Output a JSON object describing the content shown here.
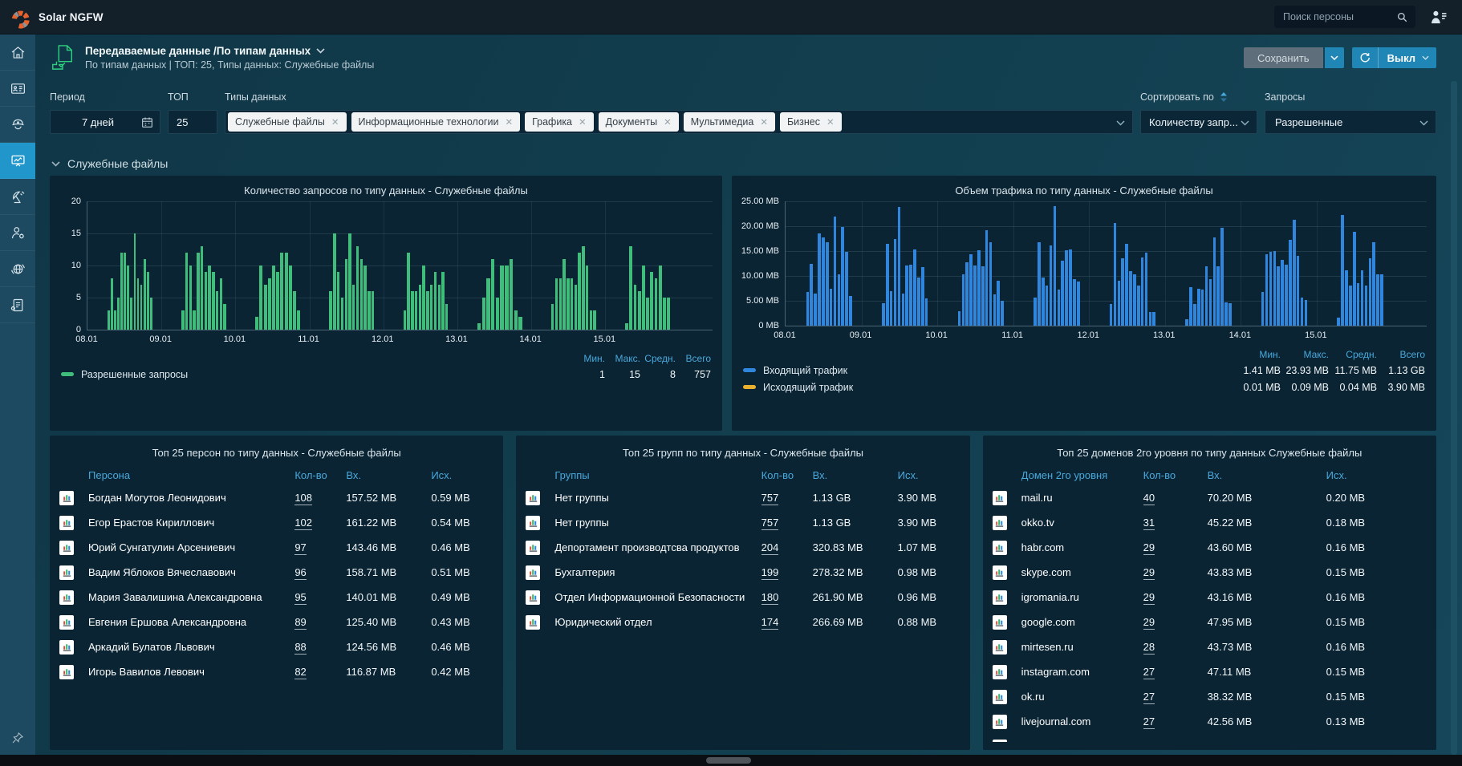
{
  "topbar": {
    "app_title": "Solar NGFW",
    "search_placeholder": "Поиск персоны"
  },
  "header": {
    "title": "Передаваемые данные /По типам данных",
    "subtitle": "По типам данных | ТОП: 25, Типы данных: Служебные файлы",
    "save_label": "Сохранить",
    "power_label": "Выкл"
  },
  "filters": {
    "period_label": "Период",
    "period_value": "7 дней",
    "top_label": "ТОП",
    "top_value": "25",
    "types_label": "Типы данных",
    "type_tags": [
      "Служебные файлы",
      "Информационные технологии",
      "Графика",
      "Документы",
      "Мультимедиа",
      "Бизнес"
    ],
    "sort_label": "Сортировать по",
    "sort_value": "Количеству запр...",
    "requests_label": "Запросы",
    "requests_value": "Разрешенные"
  },
  "section": {
    "title": "Служебные файлы"
  },
  "stats_header": [
    "Мин.",
    "Макс.",
    "Средн.",
    "Всего"
  ],
  "chart_data": [
    {
      "type": "bar",
      "title": "Количество запросов по типу данных - Служебные файлы",
      "xlabel": "",
      "ylabel": "",
      "ylim": [
        0,
        20
      ],
      "grid": true,
      "legend_position": "bottom",
      "x_ticks": [
        "08.01",
        "09.01",
        "10.01",
        "11.01",
        "12.01",
        "13.01",
        "14.01",
        "15.01"
      ],
      "y_ticks": [
        {
          "v": 0,
          "label": "0"
        },
        {
          "v": 5,
          "label": "5"
        },
        {
          "v": 10,
          "label": "10"
        },
        {
          "v": 15,
          "label": "15"
        },
        {
          "v": 20,
          "label": "20"
        }
      ],
      "series": [
        {
          "name": "Разрешенные запросы",
          "color": "#3fbe7b",
          "clusters": [
            [
              3,
              8,
              3,
              5,
              12,
              12,
              10,
              5,
              15,
              8,
              7,
              11,
              9,
              5
            ],
            [
              3,
              12,
              10,
              3,
              12,
              13,
              9,
              10,
              9,
              6,
              8,
              4
            ],
            [
              2,
              10,
              7,
              8,
              10,
              9,
              12,
              12,
              10,
              6,
              3
            ],
            [
              6,
              15,
              9,
              5,
              11,
              15,
              7,
              13,
              11,
              10,
              6,
              6
            ],
            [
              3,
              12,
              6,
              6,
              7,
              10,
              6,
              7,
              9,
              7,
              9,
              4
            ],
            [
              1,
              5,
              8,
              11,
              5,
              10,
              10,
              11,
              3,
              2
            ],
            [
              4,
              8,
              8,
              11,
              8,
              8,
              7,
              12,
              13,
              10,
              3,
              3
            ],
            [
              1,
              13,
              7,
              6,
              10,
              5,
              9,
              8,
              10,
              5,
              5
            ]
          ],
          "stats": {
            "min": "1",
            "max": "15",
            "avg": "8",
            "total": "757"
          }
        }
      ]
    },
    {
      "type": "bar",
      "title": "Объем трафика по типу данных - Служебные файлы",
      "xlabel": "",
      "ylabel": "",
      "ylim": [
        0,
        25
      ],
      "grid": true,
      "legend_position": "bottom",
      "x_ticks": [
        "08.01",
        "09.01",
        "10.01",
        "11.01",
        "12.01",
        "13.01",
        "14.01",
        "15.01"
      ],
      "y_ticks": [
        {
          "v": 0,
          "label": "0 MB"
        },
        {
          "v": 5,
          "label": "5.00 MB"
        },
        {
          "v": 10,
          "label": "10.00 MB"
        },
        {
          "v": 15,
          "label": "15.00 MB"
        },
        {
          "v": 20,
          "label": "20.00 MB"
        },
        {
          "v": 25,
          "label": "25.00 MB"
        }
      ],
      "series": [
        {
          "name": "Входящий трафик",
          "color": "#2f86dc",
          "clusters": [
            [
              6.7,
              12.4,
              6.4,
              18.6,
              17.8,
              16.7,
              7.5,
              21.9,
              10.4,
              19.8,
              14.8,
              5.9
            ],
            [
              4.5,
              16.5,
              7.0,
              17.5,
              23.9,
              6.5,
              12.1,
              12.2,
              15.3,
              9.6,
              11.7,
              5.5
            ],
            [
              2.9,
              10.4,
              12.8,
              14.4,
              12.1,
              15.2,
              12.0,
              19.2,
              16.8,
              6.3,
              9.1,
              5.0
            ],
            [
              5.7,
              16.8,
              9.7,
              8.0,
              16.2,
              24.0,
              7.2,
              13.0,
              15.2,
              15.4,
              9.4,
              8.8
            ],
            [
              4.3,
              20.7,
              9.1,
              13.6,
              16.4,
              10.9,
              10.3,
              8.1,
              13.7,
              14.7,
              2.8,
              2.7
            ],
            [
              1.3,
              7.8,
              4.3,
              7.5,
              7.3,
              11.9,
              9.3,
              17.7,
              12.0,
              19.6,
              4.6,
              4.5
            ],
            [
              6.8,
              14.3,
              14.8,
              15.0,
              11.9,
              13.3,
              12.2,
              17.2,
              21.3,
              14.1,
              5.6,
              5.1
            ],
            [
              1.6,
              22.3,
              11.2,
              8.0,
              18.9,
              8.5,
              11.1,
              8.1,
              13.6,
              16.8,
              10.4,
              10.3
            ]
          ],
          "stats": {
            "min": "1.41 MB",
            "max": "23.93 MB",
            "avg": "11.75 MB",
            "total": "1.13 GB"
          }
        },
        {
          "name": "Исходящий трафик",
          "color": "#e9b02f",
          "clusters": [],
          "stats": {
            "min": "0.01 MB",
            "max": "0.09 MB",
            "avg": "0.04 MB",
            "total": "3.90 MB"
          }
        }
      ]
    }
  ],
  "tables": [
    {
      "title": "Топ 25 персон по типу данных - Служебные файлы",
      "columns": [
        "Персона",
        "Кол-во",
        "Вх.",
        "Исх."
      ],
      "link_name": "person-link",
      "clipped_row": false,
      "rows": [
        [
          "Богдан Могутов Леонидович",
          "108",
          "157.52 MB",
          "0.59 MB"
        ],
        [
          "Егор Ерастов Кириллович",
          "102",
          "161.22 MB",
          "0.54 MB"
        ],
        [
          "Юрий Сунгатулин Арсениевич",
          "97",
          "143.46 MB",
          "0.46 MB"
        ],
        [
          "Вадим Яблоков Вячеславович",
          "96",
          "158.71 MB",
          "0.51 MB"
        ],
        [
          "Мария Завалишина Александровна",
          "95",
          "140.01 MB",
          "0.49 MB"
        ],
        [
          "Евгения Ершова Александровна",
          "89",
          "125.40 MB",
          "0.43 MB"
        ],
        [
          "Аркадий Булатов Львович",
          "88",
          "124.56 MB",
          "0.46 MB"
        ],
        [
          "Игорь Вавилов Левович",
          "82",
          "116.87 MB",
          "0.42 MB"
        ]
      ]
    },
    {
      "title": "Топ 25 групп по типу данных - Служебные файлы",
      "columns": [
        "Группы",
        "Кол-во",
        "Вх.",
        "Исх."
      ],
      "link_name": "group-link",
      "clipped_row": false,
      "rows": [
        [
          "Нет группы",
          "757",
          "1.13 GB",
          "3.90 MB"
        ],
        [
          "Нет группы",
          "757",
          "1.13 GB",
          "3.90 MB"
        ],
        [
          "Депортамент производтсва продуктов",
          "204",
          "320.83 MB",
          "1.07 MB"
        ],
        [
          "Бухгалтерия",
          "199",
          "278.32 MB",
          "0.98 MB"
        ],
        [
          "Отдел Информационной Безопасности",
          "180",
          "261.90 MB",
          "0.96 MB"
        ],
        [
          "Юридический отдел",
          "174",
          "266.69 MB",
          "0.88 MB"
        ]
      ]
    },
    {
      "title": "Топ 25 доменов 2го уровня по типу данных Служебные файлы",
      "columns": [
        "Домен 2го уровня",
        "Кол-во",
        "Вх.",
        "Исх."
      ],
      "link_name": "domain-link",
      "clipped_row": true,
      "rows": [
        [
          "mail.ru",
          "40",
          "70.20 MB",
          "0.20 MB"
        ],
        [
          "okko.tv",
          "31",
          "45.22 MB",
          "0.18 MB"
        ],
        [
          "habr.com",
          "29",
          "43.60 MB",
          "0.16 MB"
        ],
        [
          "skype.com",
          "29",
          "43.83 MB",
          "0.15 MB"
        ],
        [
          "igromania.ru",
          "29",
          "43.16 MB",
          "0.16 MB"
        ],
        [
          "google.com",
          "29",
          "47.95 MB",
          "0.15 MB"
        ],
        [
          "mirtesen.ru",
          "28",
          "43.73 MB",
          "0.16 MB"
        ],
        [
          "instagram.com",
          "27",
          "47.11 MB",
          "0.15 MB"
        ],
        [
          "ok.ru",
          "27",
          "38.32 MB",
          "0.15 MB"
        ],
        [
          "livejournal.com",
          "27",
          "42.56 MB",
          "0.13 MB"
        ]
      ]
    }
  ],
  "sidebar": {
    "items": [
      "home",
      "id-card",
      "security-officer",
      "dashboard-chart",
      "satellite",
      "user-settings",
      "globe",
      "report-settings"
    ],
    "active_index": 3,
    "bottom_icon": "pin"
  },
  "icons": {
    "close": "✕"
  },
  "colors": {
    "accent_blue": "#2196cb",
    "link_header_blue": "#49a8dc",
    "bar_green": "#3fbe7b",
    "bar_blue": "#2f86dc",
    "swatch_yellow": "#e9b02f",
    "panel_bg": "#0a2433",
    "topbar_bg": "#131f29",
    "sidebar_bg": "#1d4a60",
    "chip_bg": "#f1f3f4"
  }
}
